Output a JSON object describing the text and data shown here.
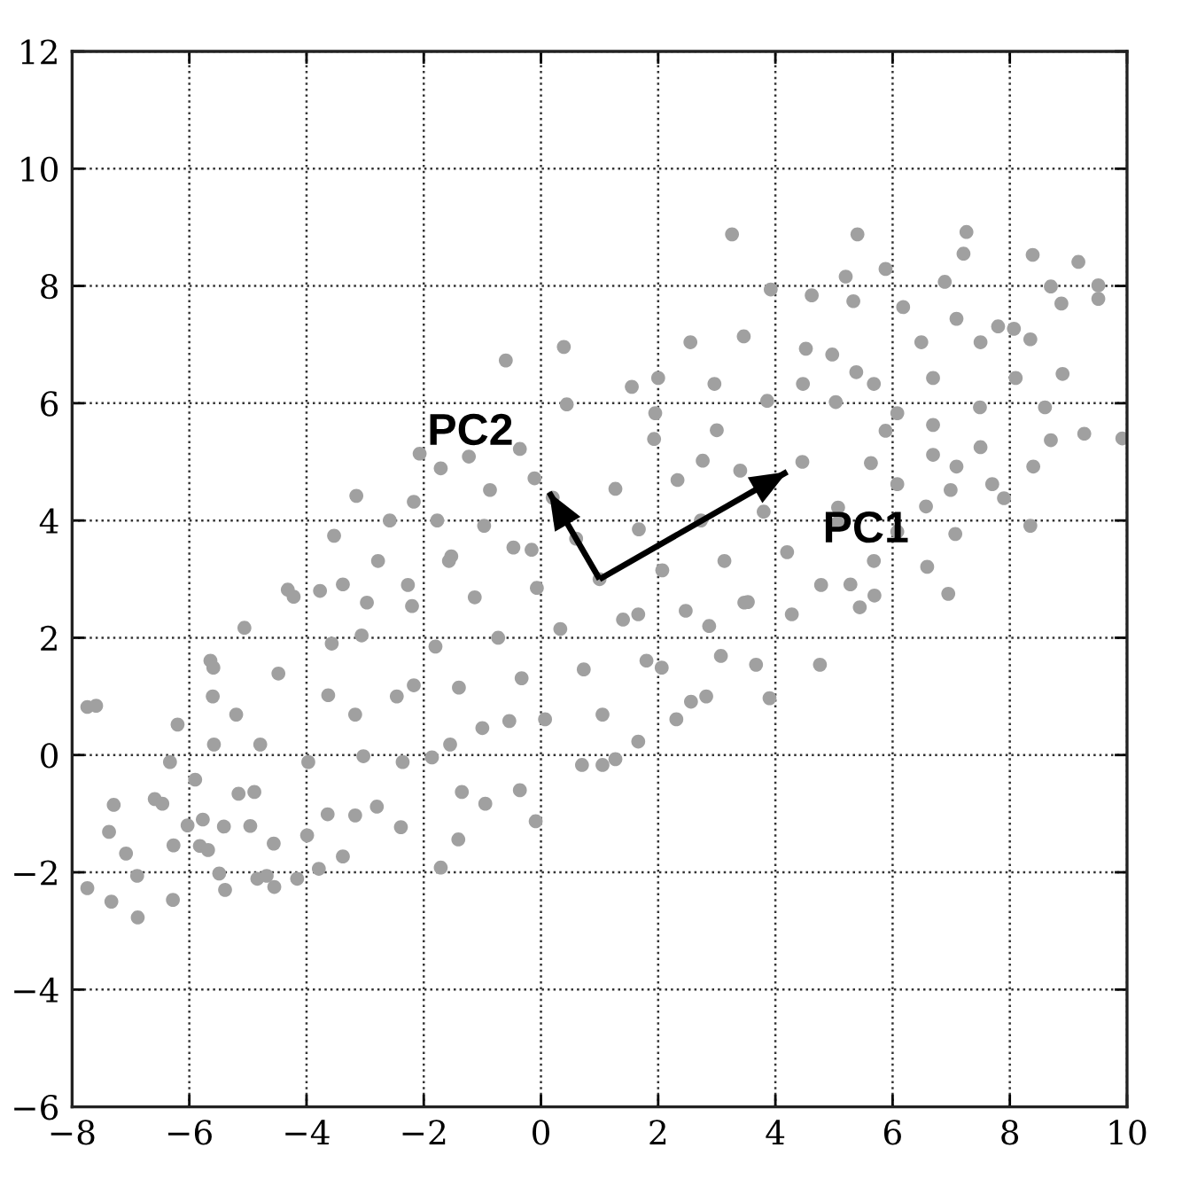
{
  "chart_data": {
    "type": "scatter",
    "xlim": [
      -8,
      10
    ],
    "ylim": [
      -6,
      12
    ],
    "xticks": [
      -8,
      -6,
      -4,
      -2,
      0,
      2,
      4,
      6,
      8,
      10
    ],
    "yticks": [
      -6,
      -4,
      -2,
      0,
      2,
      4,
      6,
      8,
      10,
      12
    ],
    "grid": true,
    "series": [
      {
        "marker": "circle",
        "color": "#a0a0a0",
        "x": [
          -7.74,
          -7.59,
          -7.37,
          -7.29,
          -7.74,
          -7.33,
          -7.08,
          -6.88,
          -6.89,
          -6.59,
          -6.46,
          -6.33,
          -6.2,
          -6.28,
          -6.27,
          -6.03,
          -5.82,
          -5.68,
          -5.77,
          -5.64,
          -5.59,
          -5.6,
          -5.41,
          -5.39,
          -5.49,
          -5.16,
          -5.06,
          -4.96,
          -4.84,
          -4.68,
          -4.55,
          -4.56,
          -4.32,
          -4.22,
          -4.16,
          -3.99,
          -3.79,
          -3.38,
          -3.64,
          -2.8,
          -2.39,
          -1.71,
          -1.41,
          -0.09,
          -0.95,
          -0.36,
          6.95,
          4.76,
          3.9,
          3.67,
          2.82,
          2.56,
          2.31,
          1.66,
          0.7,
          1.05,
          1.27,
          5.44,
          5.69,
          3.26,
          5.4,
          7.26,
          7.21,
          8.39,
          9.17,
          9.51,
          9.51,
          8.7,
          8.88,
          9.92,
          9.27,
          8.9,
          8.35,
          8.35,
          7.9,
          7.07,
          6.57,
          7.5,
          8.07,
          7.8,
          7.09,
          6.18,
          5.2,
          5.88,
          6.89,
          3.92,
          4.62,
          5.33,
          6.49,
          7.5,
          8.6,
          8.7,
          8.4,
          7.7,
          7.09,
          6.69,
          6.08,
          5.38,
          4.52,
          3.46,
          2.55,
          2.0,
          1.55,
          -0.6,
          0.39,
          -3.15,
          -3.53,
          -2.07,
          -1.71,
          -1.23,
          -2.58,
          -1.77,
          0.44,
          -0.11,
          -0.87,
          -3.03,
          -3.63,
          -1.86,
          -2.46,
          -3.06,
          -1.0,
          -1.4,
          -1.8,
          -2.2,
          0.07,
          -0.33,
          -0.73,
          -1.13,
          -1.53,
          0.73,
          0.33,
          -0.07,
          -0.47,
          1.8,
          1.4,
          1.0,
          0.6,
          0.2,
          2.47,
          2.07,
          1.67,
          1.27,
          3.53,
          3.13,
          2.73,
          2.33,
          1.93,
          4.2,
          3.8,
          3.4,
          3.0,
          5.06,
          4.46,
          3.86,
          5.63,
          5.03,
          -4.79,
          -5.2,
          -4.48,
          -3.57,
          -2.97,
          -3.17,
          -2.36,
          -3.97,
          -1.55,
          -0.54,
          -1.35,
          -5.9,
          -4.89,
          -2.17,
          -3.77,
          -5.58,
          -3.17,
          1.66,
          2.87,
          3.47,
          4.28,
          4.78,
          2.06,
          1.05,
          3.07,
          4.47,
          4.97,
          5.68,
          6.69,
          5.88,
          6.69,
          6.99,
          6.08,
          5.07,
          2.96,
          1.95,
          2.76,
          7.49,
          8.1,
          6.59,
          6.08,
          5.68,
          5.28,
          -0.36,
          -2.17,
          -2.78,
          -3.38,
          -0.97,
          -0.16,
          -1.57,
          -2.27
        ],
        "values": [
          0.82,
          0.84,
          -1.31,
          -0.85,
          -2.27,
          -2.5,
          -1.68,
          -2.77,
          -2.06,
          -0.75,
          -0.83,
          -0.12,
          0.52,
          -2.47,
          -1.54,
          -1.2,
          -1.55,
          -1.62,
          -1.1,
          1.61,
          1.49,
          1.0,
          -1.22,
          -2.3,
          -2.02,
          -0.66,
          2.17,
          -1.21,
          -2.11,
          -2.06,
          -2.25,
          -1.51,
          2.82,
          2.7,
          -2.11,
          -1.37,
          -1.94,
          -1.73,
          -1.01,
          -0.88,
          -1.23,
          -1.92,
          -1.44,
          -1.13,
          -0.83,
          -0.6,
          2.75,
          1.54,
          0.97,
          1.54,
          1.0,
          0.91,
          0.61,
          0.23,
          -0.17,
          -0.17,
          -0.07,
          2.52,
          2.72,
          8.88,
          8.88,
          8.92,
          8.55,
          8.53,
          8.41,
          8.01,
          7.78,
          7.99,
          7.7,
          5.4,
          5.48,
          6.5,
          7.09,
          3.91,
          4.38,
          3.77,
          4.24,
          5.25,
          7.27,
          7.31,
          7.44,
          7.64,
          8.16,
          8.29,
          8.07,
          7.94,
          7.84,
          7.74,
          7.04,
          7.04,
          5.93,
          5.37,
          4.92,
          4.62,
          4.92,
          5.12,
          5.83,
          6.53,
          6.93,
          7.14,
          7.04,
          6.43,
          6.28,
          6.73,
          6.96,
          4.42,
          3.74,
          5.14,
          4.89,
          5.09,
          4.0,
          4.0,
          5.98,
          4.72,
          4.52,
          -0.02,
          1.02,
          -0.04,
          1.0,
          2.04,
          0.46,
          1.15,
          1.85,
          2.54,
          0.61,
          1.31,
          2.0,
          2.69,
          3.39,
          1.46,
          2.15,
          2.85,
          3.54,
          1.61,
          2.31,
          3.0,
          3.69,
          4.39,
          2.46,
          3.15,
          3.85,
          4.54,
          2.61,
          3.31,
          4.0,
          4.69,
          5.39,
          3.46,
          4.15,
          4.85,
          5.54,
          3.96,
          5.0,
          6.04,
          4.98,
          6.02,
          0.18,
          0.69,
          1.39,
          1.9,
          2.6,
          0.69,
          -0.12,
          -0.12,
          0.18,
          0.58,
          -0.63,
          -0.42,
          -0.63,
          1.19,
          2.8,
          0.18,
          -1.03,
          2.4,
          2.2,
          2.6,
          2.4,
          2.9,
          1.49,
          0.69,
          1.69,
          6.33,
          6.83,
          6.33,
          6.43,
          5.53,
          5.63,
          4.52,
          4.62,
          4.22,
          6.33,
          5.83,
          5.02,
          5.93,
          6.43,
          3.21,
          3.81,
          3.31,
          2.91,
          5.22,
          4.32,
          3.31,
          2.91,
          3.91,
          3.5,
          3.31,
          2.9
        ]
      },
      {
        "type": "line",
        "color": "#000000",
        "x": [
          1.0,
          4.2
        ],
        "values": [
          3.0,
          4.83
        ]
      },
      {
        "type": "line",
        "color": "#000000",
        "x": [
          1.0,
          0.14
        ],
        "values": [
          3.0,
          4.48
        ]
      }
    ],
    "annotations": [
      {
        "text": "PC1",
        "x": 4.2,
        "y": 4.83
      },
      {
        "text": "PC2",
        "x": 0.14,
        "y": 4.48
      }
    ]
  }
}
